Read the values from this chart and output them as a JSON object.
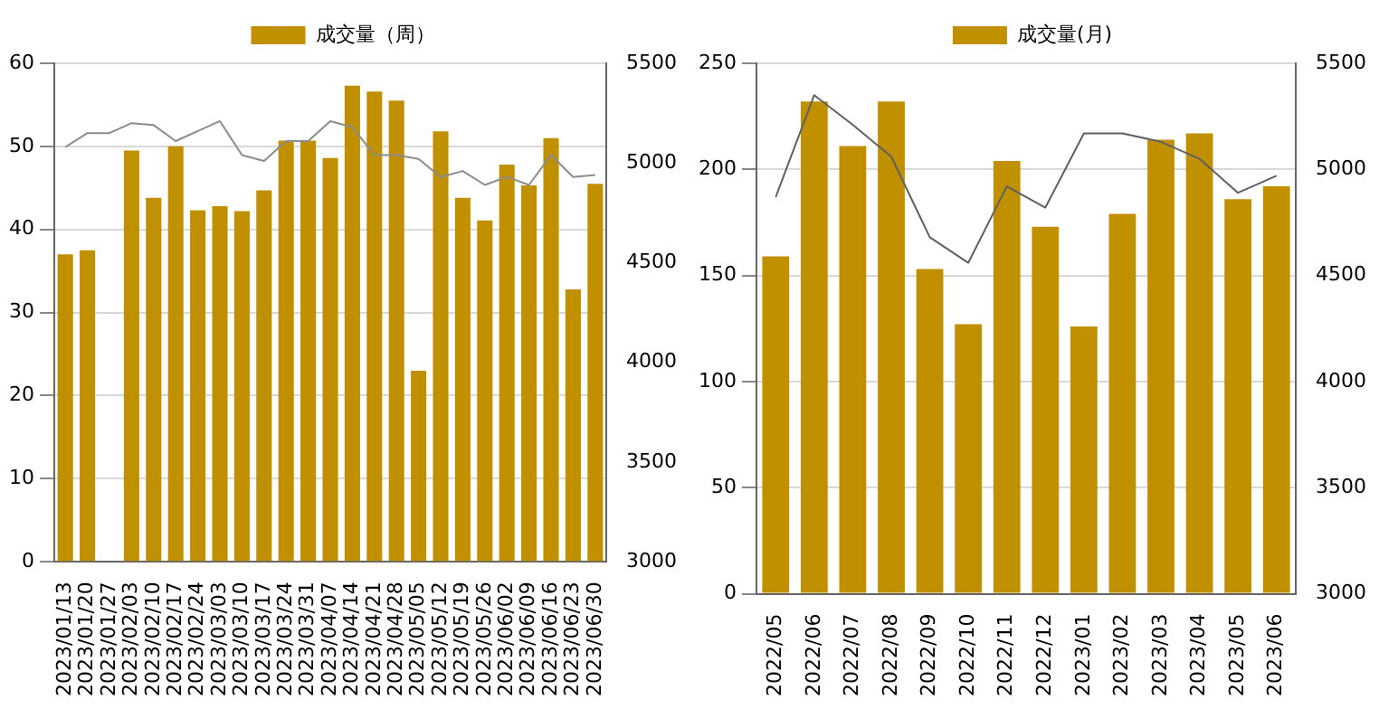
{
  "chart_data": [
    {
      "type": "bar",
      "categories": [
        "2023/01/13",
        "2023/01/20",
        "2023/01/27",
        "2023/02/03",
        "2023/02/10",
        "2023/02/17",
        "2023/02/24",
        "2023/03/03",
        "2023/03/10",
        "2023/03/17",
        "2023/03/24",
        "2023/03/31",
        "2023/04/07",
        "2023/04/14",
        "2023/04/21",
        "2023/04/28",
        "2023/05/05",
        "2023/05/12",
        "2023/05/19",
        "2023/05/26",
        "2023/06/02",
        "2023/06/09",
        "2023/06/16",
        "2023/06/23",
        "2023/06/30"
      ],
      "series": [
        {
          "name": "成交量（周）",
          "color": "#c09000",
          "values": [
            37,
            37.5,
            null,
            49.5,
            43.8,
            50,
            42.3,
            42.8,
            42.2,
            44.7,
            50.7,
            50.7,
            48.6,
            57.3,
            56.6,
            55.5,
            23,
            51.8,
            43.8,
            41.1,
            47.8,
            45.3,
            51,
            32.8,
            45.5
          ]
        },
        {
          "type": "line",
          "axis": "y2",
          "color": "#8c8c8c",
          "values": [
            5080,
            5150,
            5150,
            5200,
            5190,
            5110,
            5160,
            5210,
            5040,
            5010,
            5110,
            5110,
            5210,
            5180,
            5040,
            5040,
            5020,
            4930,
            4960,
            4890,
            4930,
            4890,
            5040,
            4930,
            4940
          ]
        }
      ],
      "ylim": [
        0,
        60
      ],
      "yticks": [
        0,
        10,
        20,
        30,
        40,
        50,
        60
      ],
      "y2lim": [
        3000,
        5500
      ],
      "y2ticks": [
        3000,
        3500,
        4000,
        4500,
        5000,
        5500
      ],
      "grid": "y",
      "legend": "top"
    },
    {
      "type": "bar",
      "categories": [
        "2022/05",
        "2022/06",
        "2022/07",
        "2022/08",
        "2022/09",
        "2022/10",
        "2022/11",
        "2022/12",
        "2023/01",
        "2023/02",
        "2023/03",
        "2023/04",
        "2023/05",
        "2023/06"
      ],
      "series": [
        {
          "name": "成交量(月)",
          "color": "#c09000",
          "values": [
            159,
            232,
            211,
            232,
            153,
            127,
            204,
            173,
            126,
            179,
            214,
            217,
            186,
            192
          ]
        },
        {
          "type": "line",
          "axis": "y2",
          "color": "#606060",
          "values": [
            4870,
            5350,
            5210,
            5060,
            4680,
            4560,
            4920,
            4820,
            5170,
            5170,
            5130,
            5050,
            4890,
            4970
          ]
        }
      ],
      "ylim": [
        0,
        250
      ],
      "yticks": [
        0,
        50,
        100,
        150,
        200,
        250
      ],
      "y2lim": [
        3000,
        5500
      ],
      "y2ticks": [
        3000,
        3500,
        4000,
        4500,
        5000,
        5500
      ],
      "grid": "y",
      "legend": "top"
    }
  ]
}
